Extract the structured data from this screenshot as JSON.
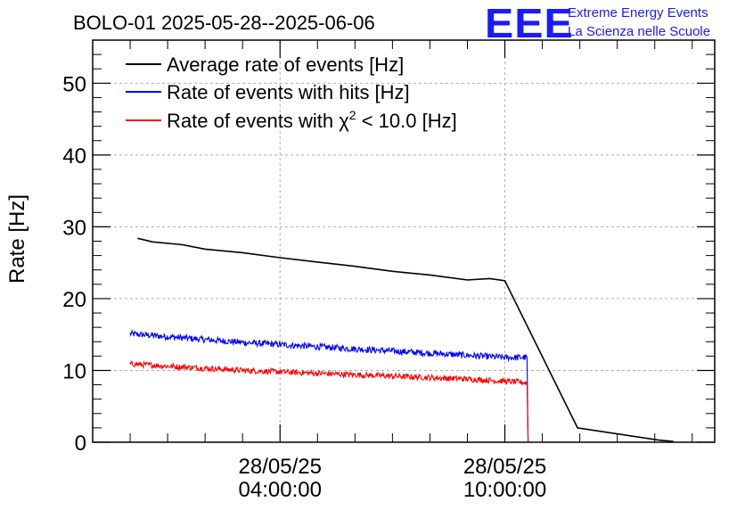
{
  "branding": {
    "mark": "EEE",
    "line1": "Extreme Energy Events",
    "line2": "La Scienza nelle Scuole"
  },
  "colors": {
    "average": "#000000",
    "hits": "#0000ff",
    "chi2": "#ff0000",
    "grid": "#b0b0b0"
  },
  "chart_data": {
    "type": "line",
    "title": "BOLO-01 2025-05-28--2025-06-06",
    "ylabel": "Rate [Hz]",
    "xlabel": "",
    "xlim": [
      -0.5,
      7.8
    ],
    "ylim": [
      0,
      56
    ],
    "yticks": [
      0,
      10,
      20,
      30,
      40,
      50
    ],
    "xticks": [
      {
        "x": 2.0,
        "line1": "28/05/25",
        "line2": "04:00:00"
      },
      {
        "x": 5.0,
        "line1": "28/05/25",
        "line2": "10:00:00"
      }
    ],
    "legend": {
      "position": "top-left",
      "chi2_label_prefix": "Rate of events with ",
      "chi2_label_symbol": "χ",
      "chi2_label_sup": "2",
      "chi2_label_suffix": " < 10.0 [Hz]"
    },
    "series": [
      {
        "name": "Average rate of events [Hz]",
        "key": "average",
        "x": [
          0.1,
          0.3,
          0.7,
          1.0,
          1.5,
          2.0,
          2.5,
          3.0,
          3.5,
          4.0,
          4.5,
          4.8,
          5.0,
          5.97,
          7.05,
          7.25
        ],
        "y": [
          28.4,
          27.9,
          27.5,
          26.9,
          26.4,
          25.7,
          25.1,
          24.5,
          23.8,
          23.3,
          22.6,
          22.8,
          22.5,
          2.0,
          0.3,
          0.1
        ]
      },
      {
        "name": "Rate of events with hits [Hz]",
        "key": "hits",
        "x": [
          0.0,
          0.5,
          1.0,
          1.5,
          2.0,
          2.5,
          3.0,
          3.5,
          4.0,
          4.5,
          5.0,
          5.3,
          5.31,
          5.36,
          6.0,
          7.25
        ],
        "y": [
          15.1,
          14.7,
          14.3,
          13.9,
          13.6,
          13.3,
          13.0,
          12.7,
          12.4,
          12.1,
          11.8,
          11.8,
          0.0,
          0.0,
          0.0,
          0.0
        ],
        "noise": 0.45
      },
      {
        "name": "Rate of events with χ2 < 10.0 [Hz]",
        "key": "chi2",
        "x": [
          0.0,
          0.5,
          1.0,
          1.5,
          2.0,
          2.5,
          3.0,
          3.5,
          4.0,
          4.5,
          5.0,
          5.3,
          5.31,
          5.36,
          6.0,
          7.25
        ],
        "y": [
          10.9,
          10.6,
          10.3,
          10.0,
          9.8,
          9.6,
          9.4,
          9.2,
          9.0,
          8.8,
          8.5,
          8.3,
          0.0,
          0.0,
          0.0,
          0.0
        ],
        "noise": 0.4
      }
    ]
  }
}
